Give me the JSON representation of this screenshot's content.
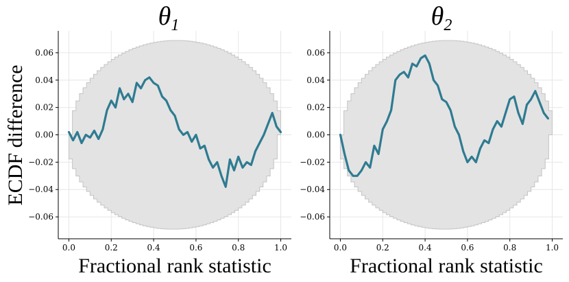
{
  "figure": {
    "ylabel": "ECDF difference",
    "colors": {
      "line": "#2e7b91",
      "band_fill": "#e3e3e3",
      "band_edge": "#c4c4c4",
      "grid": "#e6e6e6",
      "axis": "#000000"
    }
  },
  "chart_data": [
    {
      "type": "line",
      "title_symbol": "θ",
      "title_subscript": "1",
      "xlabel": "Fractional rank statistic",
      "ylabel": "ECDF difference",
      "xlim": [
        -0.05,
        1.05
      ],
      "ylim": [
        -0.076,
        0.076
      ],
      "xticks": [
        0.0,
        0.2,
        0.4,
        0.6,
        0.8,
        1.0
      ],
      "xtick_labels": [
        "0.0",
        "0.2",
        "0.4",
        "0.6",
        "0.8",
        "1.0"
      ],
      "yticks": [
        -0.06,
        -0.04,
        -0.02,
        0.0,
        0.02,
        0.04,
        0.06
      ],
      "ytick_labels": [
        "−0.06",
        "−0.04",
        "−0.02",
        "0.00",
        "0.02",
        "0.04",
        "0.06"
      ],
      "grid": true,
      "band": {
        "x_range": [
          0.0,
          1.0
        ],
        "half_width_max": 0.069,
        "name": "simultaneous confidence band"
      },
      "series": [
        {
          "name": "theta1-ecdf-difference",
          "x": [
            0.0,
            0.02,
            0.04,
            0.06,
            0.08,
            0.1,
            0.12,
            0.14,
            0.16,
            0.18,
            0.2,
            0.22,
            0.24,
            0.26,
            0.28,
            0.3,
            0.32,
            0.34,
            0.36,
            0.38,
            0.4,
            0.42,
            0.44,
            0.46,
            0.48,
            0.5,
            0.52,
            0.54,
            0.56,
            0.58,
            0.6,
            0.62,
            0.64,
            0.66,
            0.68,
            0.7,
            0.72,
            0.74,
            0.76,
            0.78,
            0.8,
            0.82,
            0.84,
            0.86,
            0.88,
            0.9,
            0.92,
            0.94,
            0.96,
            0.98,
            1.0
          ],
          "y": [
            0.002,
            -0.004,
            0.002,
            -0.006,
            0.0,
            -0.002,
            0.003,
            -0.003,
            0.004,
            0.018,
            0.025,
            0.02,
            0.034,
            0.026,
            0.03,
            0.024,
            0.038,
            0.034,
            0.04,
            0.042,
            0.038,
            0.036,
            0.028,
            0.025,
            0.018,
            0.014,
            0.004,
            0.0,
            0.002,
            -0.005,
            0.0,
            -0.01,
            -0.008,
            -0.018,
            -0.024,
            -0.02,
            -0.03,
            -0.038,
            -0.018,
            -0.026,
            -0.016,
            -0.024,
            -0.02,
            -0.022,
            -0.012,
            -0.006,
            0.0,
            0.008,
            0.016,
            0.006,
            0.002
          ]
        }
      ]
    },
    {
      "type": "line",
      "title_symbol": "θ",
      "title_subscript": "2",
      "xlabel": "Fractional rank statistic",
      "ylabel": "",
      "xlim": [
        -0.05,
        1.05
      ],
      "ylim": [
        -0.076,
        0.076
      ],
      "xticks": [
        0.0,
        0.2,
        0.4,
        0.6,
        0.8,
        1.0
      ],
      "xtick_labels": [
        "0.0",
        "0.2",
        "0.4",
        "0.6",
        "0.8",
        "1.0"
      ],
      "yticks": [
        -0.06,
        -0.04,
        -0.02,
        0.0,
        0.02,
        0.04,
        0.06
      ],
      "ytick_labels": [
        "−0.06",
        "−0.04",
        "−0.02",
        "0.00",
        "0.02",
        "0.04",
        "0.06"
      ],
      "grid": true,
      "band": {
        "x_range": [
          0.0,
          1.0
        ],
        "half_width_max": 0.069,
        "name": "simultaneous confidence band"
      },
      "series": [
        {
          "name": "theta2-ecdf-difference",
          "x": [
            0.0,
            0.02,
            0.04,
            0.06,
            0.08,
            0.1,
            0.12,
            0.14,
            0.16,
            0.18,
            0.2,
            0.22,
            0.24,
            0.26,
            0.28,
            0.3,
            0.32,
            0.34,
            0.36,
            0.38,
            0.4,
            0.42,
            0.44,
            0.46,
            0.48,
            0.5,
            0.52,
            0.54,
            0.56,
            0.58,
            0.6,
            0.62,
            0.64,
            0.66,
            0.68,
            0.7,
            0.72,
            0.74,
            0.76,
            0.78,
            0.8,
            0.82,
            0.84,
            0.86,
            0.88,
            0.9,
            0.92,
            0.94,
            0.96,
            0.98
          ],
          "y": [
            0.0,
            -0.014,
            -0.026,
            -0.03,
            -0.03,
            -0.026,
            -0.02,
            -0.024,
            -0.008,
            -0.014,
            0.004,
            0.01,
            0.018,
            0.04,
            0.044,
            0.046,
            0.042,
            0.052,
            0.05,
            0.056,
            0.058,
            0.052,
            0.04,
            0.036,
            0.026,
            0.024,
            0.018,
            0.006,
            0.0,
            -0.012,
            -0.02,
            -0.016,
            -0.02,
            -0.01,
            -0.004,
            -0.006,
            0.004,
            0.01,
            0.006,
            0.016,
            0.026,
            0.028,
            0.016,
            0.008,
            0.022,
            0.026,
            0.032,
            0.024,
            0.016,
            0.012
          ]
        }
      ]
    }
  ]
}
